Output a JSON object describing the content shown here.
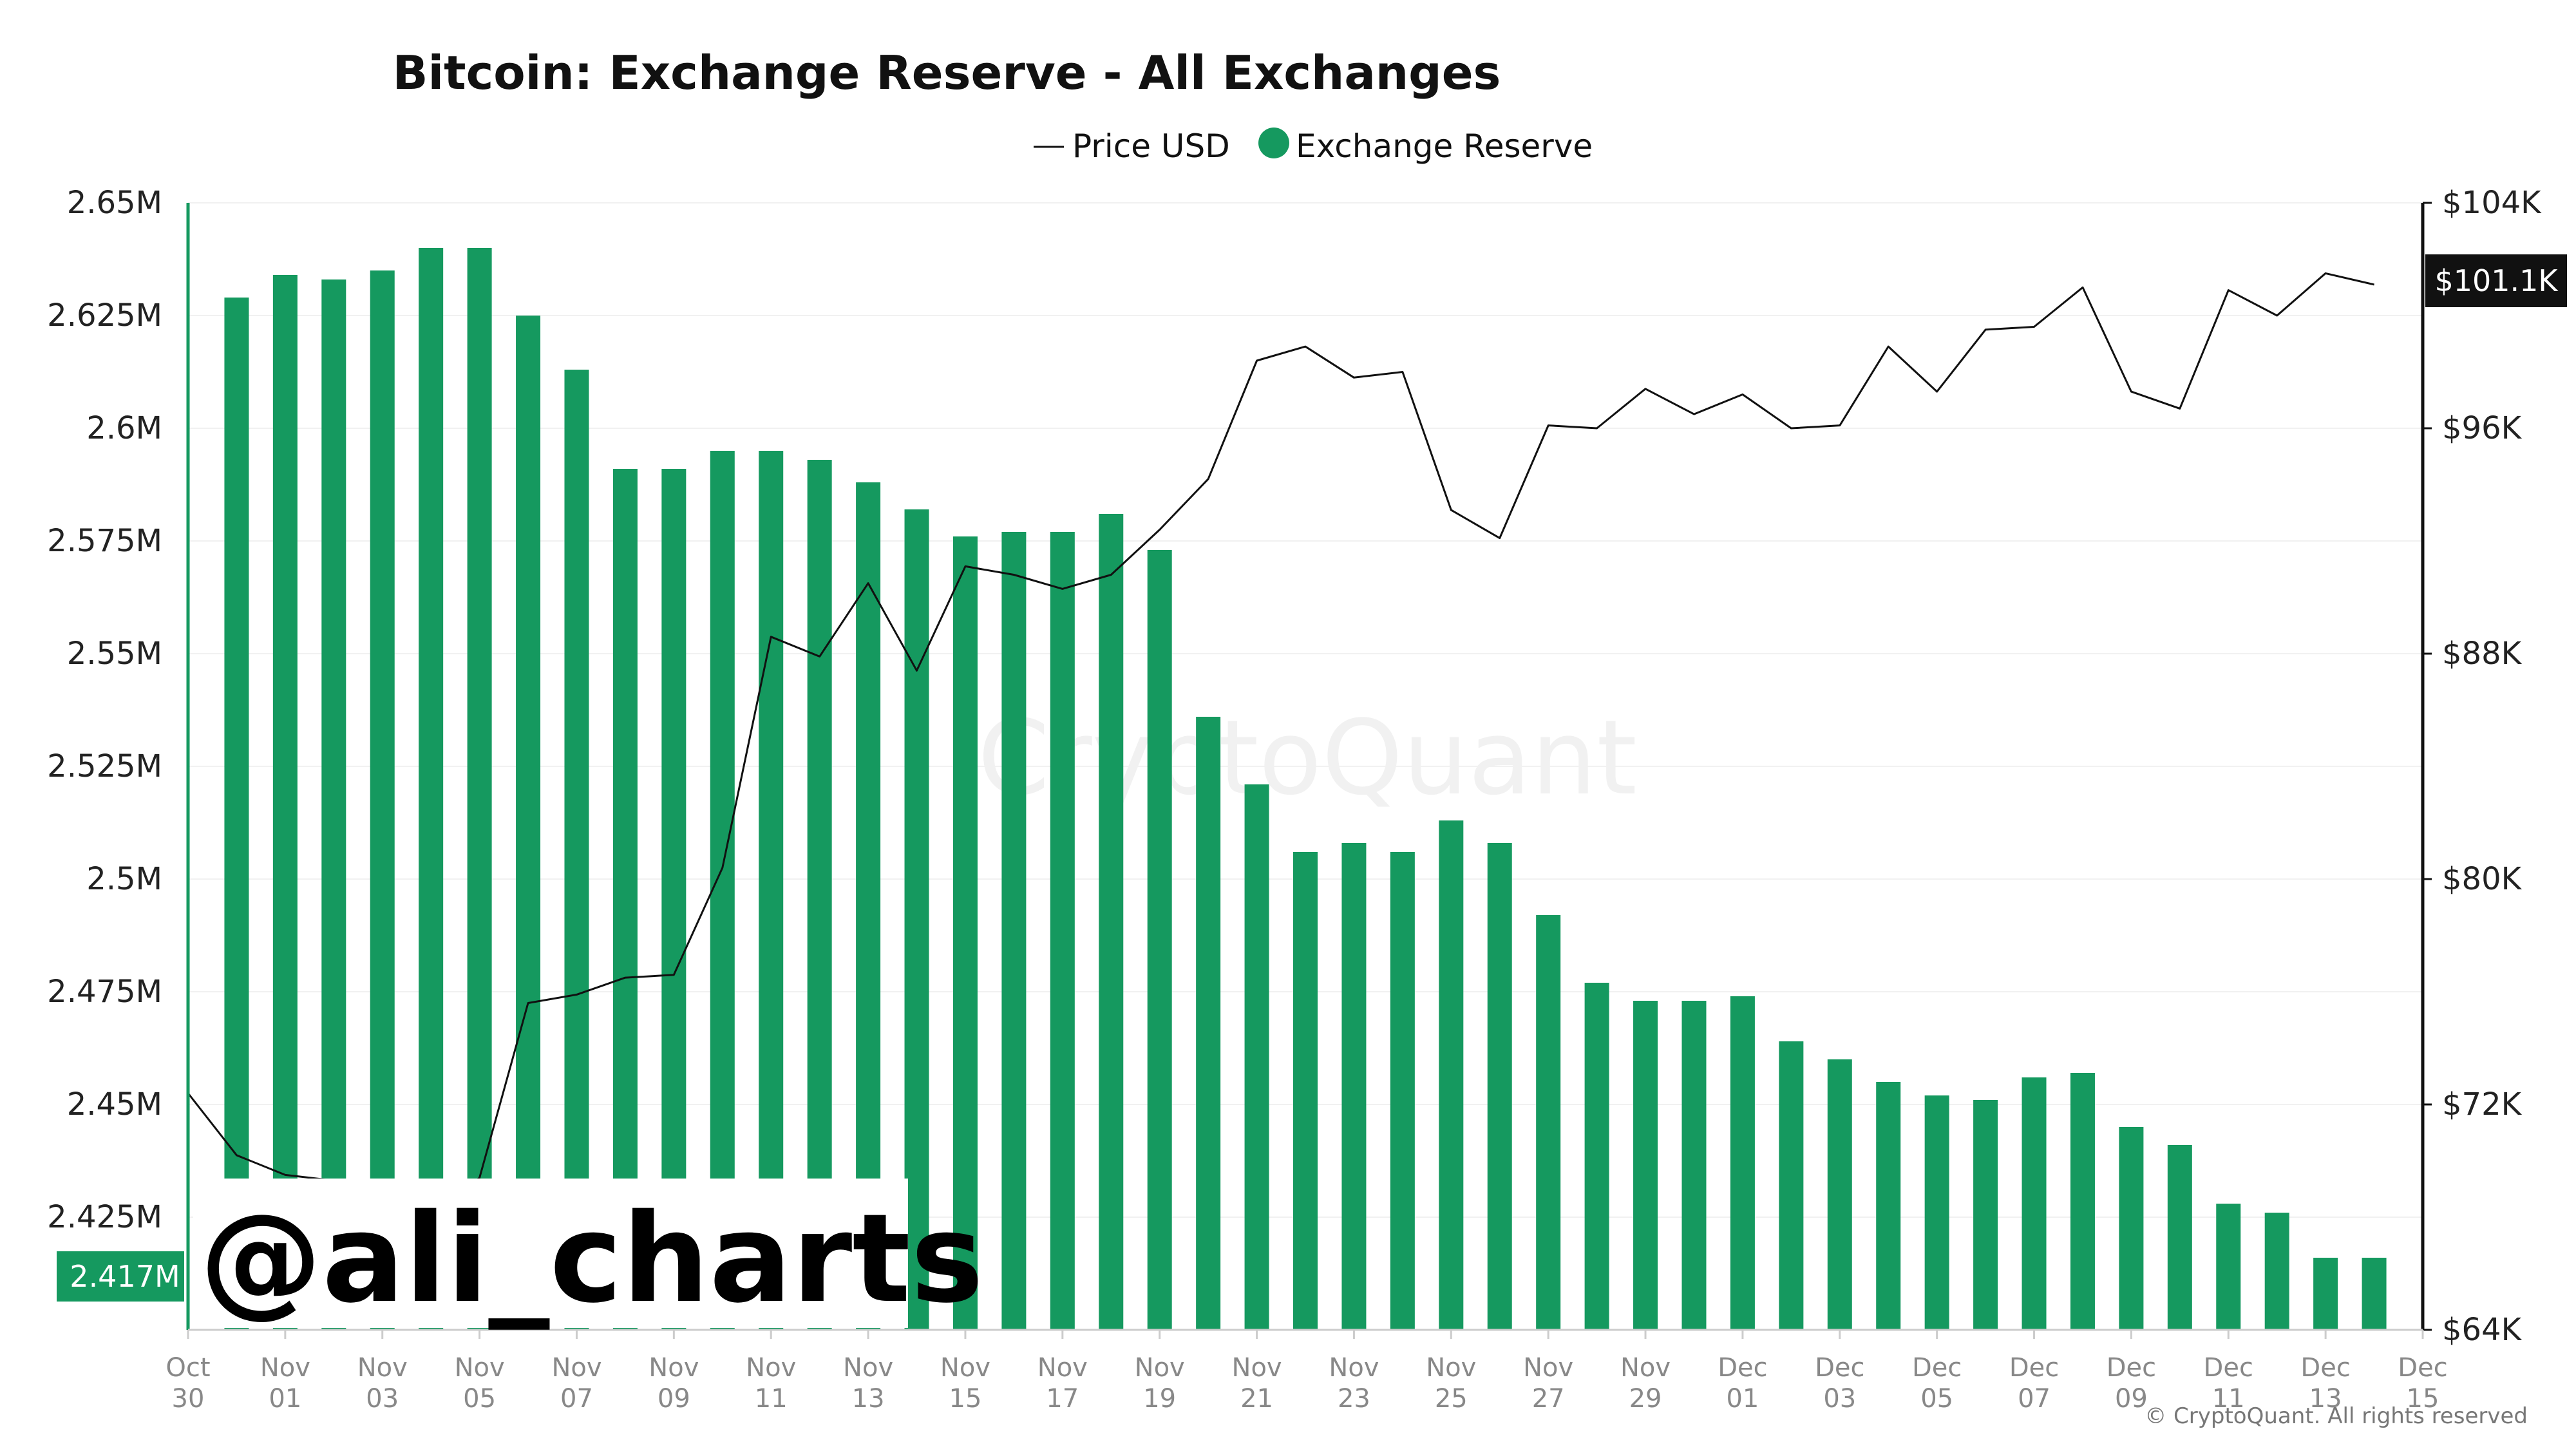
{
  "chart_data": {
    "type": "bar",
    "title": "Bitcoin: Exchange Reserve - All Exchanges",
    "legend": [
      {
        "label": "Price USD",
        "symbol": "line",
        "color": "#111111"
      },
      {
        "label": "Exchange Reserve",
        "symbol": "dot",
        "color": "#15995f"
      }
    ],
    "legend_placement": "top-center",
    "colors": {
      "bar": "#15995f",
      "line": "#111111",
      "axis_left": "#15995f"
    },
    "y_left": {
      "ylim": [
        2.4,
        2.65
      ],
      "ticks": [
        2.65,
        2.625,
        2.6,
        2.575,
        2.55,
        2.525,
        2.5,
        2.475,
        2.45,
        2.425
      ],
      "tick_labels": [
        "2.65M",
        "2.625M",
        "2.6M",
        "2.575M",
        "2.55M",
        "2.525M",
        "2.5M",
        "2.475M",
        "2.45M",
        "2.425M"
      ]
    },
    "y_right": {
      "ylim": [
        64000,
        104000
      ],
      "ticks": [
        104000,
        96000,
        88000,
        80000,
        72000,
        64000
      ],
      "tick_labels": [
        "$104K",
        "$96K",
        "$88K",
        "$80K",
        "$72K",
        "$64K"
      ]
    },
    "x_ticks": [
      {
        "label": [
          "Oct",
          "30"
        ],
        "index": 0
      },
      {
        "label": [
          "Nov",
          "01"
        ],
        "index": 2
      },
      {
        "label": [
          "Nov",
          "03"
        ],
        "index": 4
      },
      {
        "label": [
          "Nov",
          "05"
        ],
        "index": 6
      },
      {
        "label": [
          "Nov",
          "07"
        ],
        "index": 8
      },
      {
        "label": [
          "Nov",
          "09"
        ],
        "index": 10
      },
      {
        "label": [
          "Nov",
          "11"
        ],
        "index": 12
      },
      {
        "label": [
          "Nov",
          "13"
        ],
        "index": 14
      },
      {
        "label": [
          "Nov",
          "15"
        ],
        "index": 16
      },
      {
        "label": [
          "Nov",
          "17"
        ],
        "index": 18
      },
      {
        "label": [
          "Nov",
          "19"
        ],
        "index": 20
      },
      {
        "label": [
          "Nov",
          "21"
        ],
        "index": 22
      },
      {
        "label": [
          "Nov",
          "23"
        ],
        "index": 24
      },
      {
        "label": [
          "Nov",
          "25"
        ],
        "index": 26
      },
      {
        "label": [
          "Nov",
          "27"
        ],
        "index": 28
      },
      {
        "label": [
          "Nov",
          "29"
        ],
        "index": 30
      },
      {
        "label": [
          "Dec",
          "01"
        ],
        "index": 32
      },
      {
        "label": [
          "Dec",
          "03"
        ],
        "index": 34
      },
      {
        "label": [
          "Dec",
          "05"
        ],
        "index": 36
      },
      {
        "label": [
          "Dec",
          "07"
        ],
        "index": 38
      },
      {
        "label": [
          "Dec",
          "09"
        ],
        "index": 40
      },
      {
        "label": [
          "Dec",
          "11"
        ],
        "index": 42
      },
      {
        "label": [
          "Dec",
          "13"
        ],
        "index": 44
      },
      {
        "label": [
          "Dec",
          "15"
        ],
        "index": 46
      }
    ],
    "series": [
      {
        "name": "Exchange Reserve",
        "kind": "bar",
        "axis": "left",
        "x": [
          "2024-10-31",
          "2024-11-01",
          "2024-11-02",
          "2024-11-03",
          "2024-11-04",
          "2024-11-05",
          "2024-11-06",
          "2024-11-07",
          "2024-11-08",
          "2024-11-09",
          "2024-11-10",
          "2024-11-11",
          "2024-11-12",
          "2024-11-13",
          "2024-11-14",
          "2024-11-15",
          "2024-11-16",
          "2024-11-17",
          "2024-11-18",
          "2024-11-19",
          "2024-11-20",
          "2024-11-21",
          "2024-11-22",
          "2024-11-23",
          "2024-11-24",
          "2024-11-25",
          "2024-11-26",
          "2024-11-27",
          "2024-11-28",
          "2024-11-29",
          "2024-11-30",
          "2024-12-01",
          "2024-12-02",
          "2024-12-03",
          "2024-12-04",
          "2024-12-05",
          "2024-12-06",
          "2024-12-07",
          "2024-12-08",
          "2024-12-09",
          "2024-12-10",
          "2024-12-11",
          "2024-12-12",
          "2024-12-13",
          "2024-12-14"
        ],
        "values": [
          2.629,
          2.634,
          2.633,
          2.635,
          2.64,
          2.64,
          2.625,
          2.613,
          2.591,
          2.591,
          2.595,
          2.595,
          2.593,
          2.588,
          2.582,
          2.576,
          2.577,
          2.577,
          2.581,
          2.573,
          2.536,
          2.521,
          2.506,
          2.508,
          2.506,
          2.513,
          2.508,
          2.492,
          2.477,
          2.473,
          2.473,
          2.474,
          2.464,
          2.46,
          2.455,
          2.452,
          2.451,
          2.456,
          2.457,
          2.445,
          2.441,
          2.428,
          2.426,
          2.416,
          2.416
        ]
      },
      {
        "name": "Price USD",
        "kind": "line",
        "axis": "right",
        "x": [
          "2024-10-30",
          "2024-10-31",
          "2024-11-01",
          "2024-11-02",
          "2024-11-03",
          "2024-11-04",
          "2024-11-05",
          "2024-11-06",
          "2024-11-07",
          "2024-11-08",
          "2024-11-09",
          "2024-11-10",
          "2024-11-11",
          "2024-11-12",
          "2024-11-13",
          "2024-11-14",
          "2024-11-15",
          "2024-11-16",
          "2024-11-17",
          "2024-11-18",
          "2024-11-19",
          "2024-11-20",
          "2024-11-21",
          "2024-11-22",
          "2024-11-23",
          "2024-11-24",
          "2024-11-25",
          "2024-11-26",
          "2024-11-27",
          "2024-11-28",
          "2024-11-29",
          "2024-11-30",
          "2024-12-01",
          "2024-12-02",
          "2024-12-03",
          "2024-12-04",
          "2024-12-05",
          "2024-12-06",
          "2024-12-07",
          "2024-12-08",
          "2024-12-09",
          "2024-12-10",
          "2024-12-11",
          "2024-12-12",
          "2024-12-13",
          "2024-12-14"
        ],
        "values": [
          72400,
          70200,
          69500,
          69300,
          68800,
          67900,
          69400,
          75600,
          75900,
          76500,
          76600,
          80400,
          88600,
          87900,
          90500,
          87400,
          91100,
          90800,
          90300,
          90800,
          92400,
          94200,
          98400,
          98900,
          97800,
          98000,
          93100,
          92100,
          96100,
          96000,
          97400,
          96500,
          97200,
          96000,
          96100,
          98900,
          97300,
          99500,
          99600,
          101000,
          97300,
          96700,
          100900,
          100000,
          101500,
          101100
        ]
      }
    ],
    "badges": {
      "left_value": "2.417M",
      "right_value": "$101.1K"
    },
    "watermark": "CryptoQuant",
    "copyright": "© CryptoQuant. All rights reserved",
    "overlay_handle": "@ali_charts"
  }
}
